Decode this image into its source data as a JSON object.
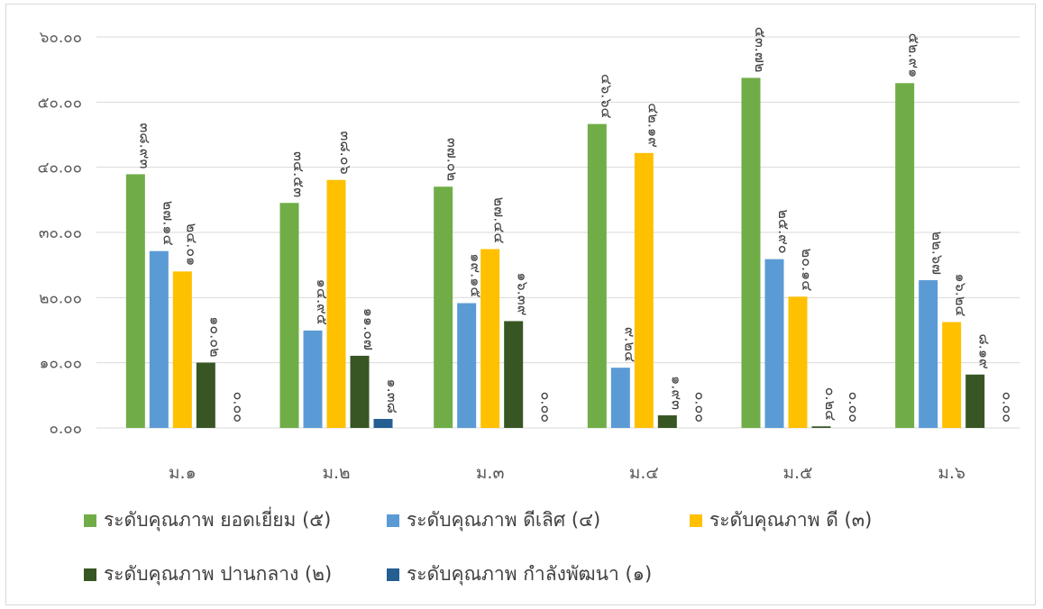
{
  "chart_data": {
    "type": "bar",
    "categories": [
      "ม.๑",
      "ม.๒",
      "ม.๓",
      "ม.๔",
      "ม.๕",
      "ม.๖"
    ],
    "ytick_labels": [
      "๐.๐๐",
      "๑๐.๐๐",
      "๒๐.๐๐",
      "๓๐.๐๐",
      "๔๐.๐๐",
      "๕๐.๐๐",
      "๖๐.๐๐"
    ],
    "ylim": [
      0,
      60
    ],
    "grid": true,
    "legend_position": "bottom",
    "series": [
      {
        "name": "ระดับคุณภาพ ยอดเยี่ยม (๕)",
        "color": "#70ad47",
        "values": [
          38.93,
          34.53,
          37.02,
          46.64,
          53.72,
          52.91
        ],
        "labels": [
          "๓๘.๙๓",
          "๓๔.๕๓",
          "๓๗.๐๒",
          "๔๖.๖๔",
          "๕๓.๗๒",
          "๕๒.๙๑"
        ]
      },
      {
        "name": "ระดับคุณภาพ ดีเลิศ (๔)",
        "color": "#5b9bd5",
        "values": [
          27.14,
          14.95,
          19.15,
          9.24,
          25.9,
          22.67
        ],
        "labels": [
          "๒๗.๑๔",
          "๑๔.๙๕",
          "๑๙.๑๕",
          "๙.๒๔",
          "๒๕.๙๐",
          "๒๒.๖๗"
        ]
      },
      {
        "name": "ระดับคุณภาพ ดี (๓)",
        "color": "#ffc000",
        "values": [
          24.01,
          38.06,
          27.44,
          42.19,
          20.14,
          16.24
        ],
        "labels": [
          "๒๔.๐๑",
          "๓๘.๐๖",
          "๒๗.๔๔",
          "๔๒.๑๙",
          "๒๐.๑๔",
          "๑๖.๒๔"
        ]
      },
      {
        "name": "ระดับคุณภาพ ปานกลาง (๒)",
        "color": "#375623",
        "values": [
          10.02,
          11.07,
          16.39,
          1.93,
          0.24,
          8.19
        ],
        "labels": [
          "๑๐.๐๒",
          "๑๑.๐๗",
          "๑๖.๓๙",
          "๑.๙๓",
          "๐.๒๔",
          "๘.๑๙"
        ]
      },
      {
        "name": "ระดับคุณภาพ กำลังพัฒนา (๑)",
        "color": "#255e91",
        "values": [
          0.0,
          1.38,
          0.0,
          0.0,
          0.0,
          0.0
        ],
        "labels": [
          "๐.๐๐",
          "๑.๓๘",
          "๐.๐๐",
          "๐.๐๐",
          "๐.๐๐",
          "๐.๐๐"
        ]
      }
    ]
  }
}
